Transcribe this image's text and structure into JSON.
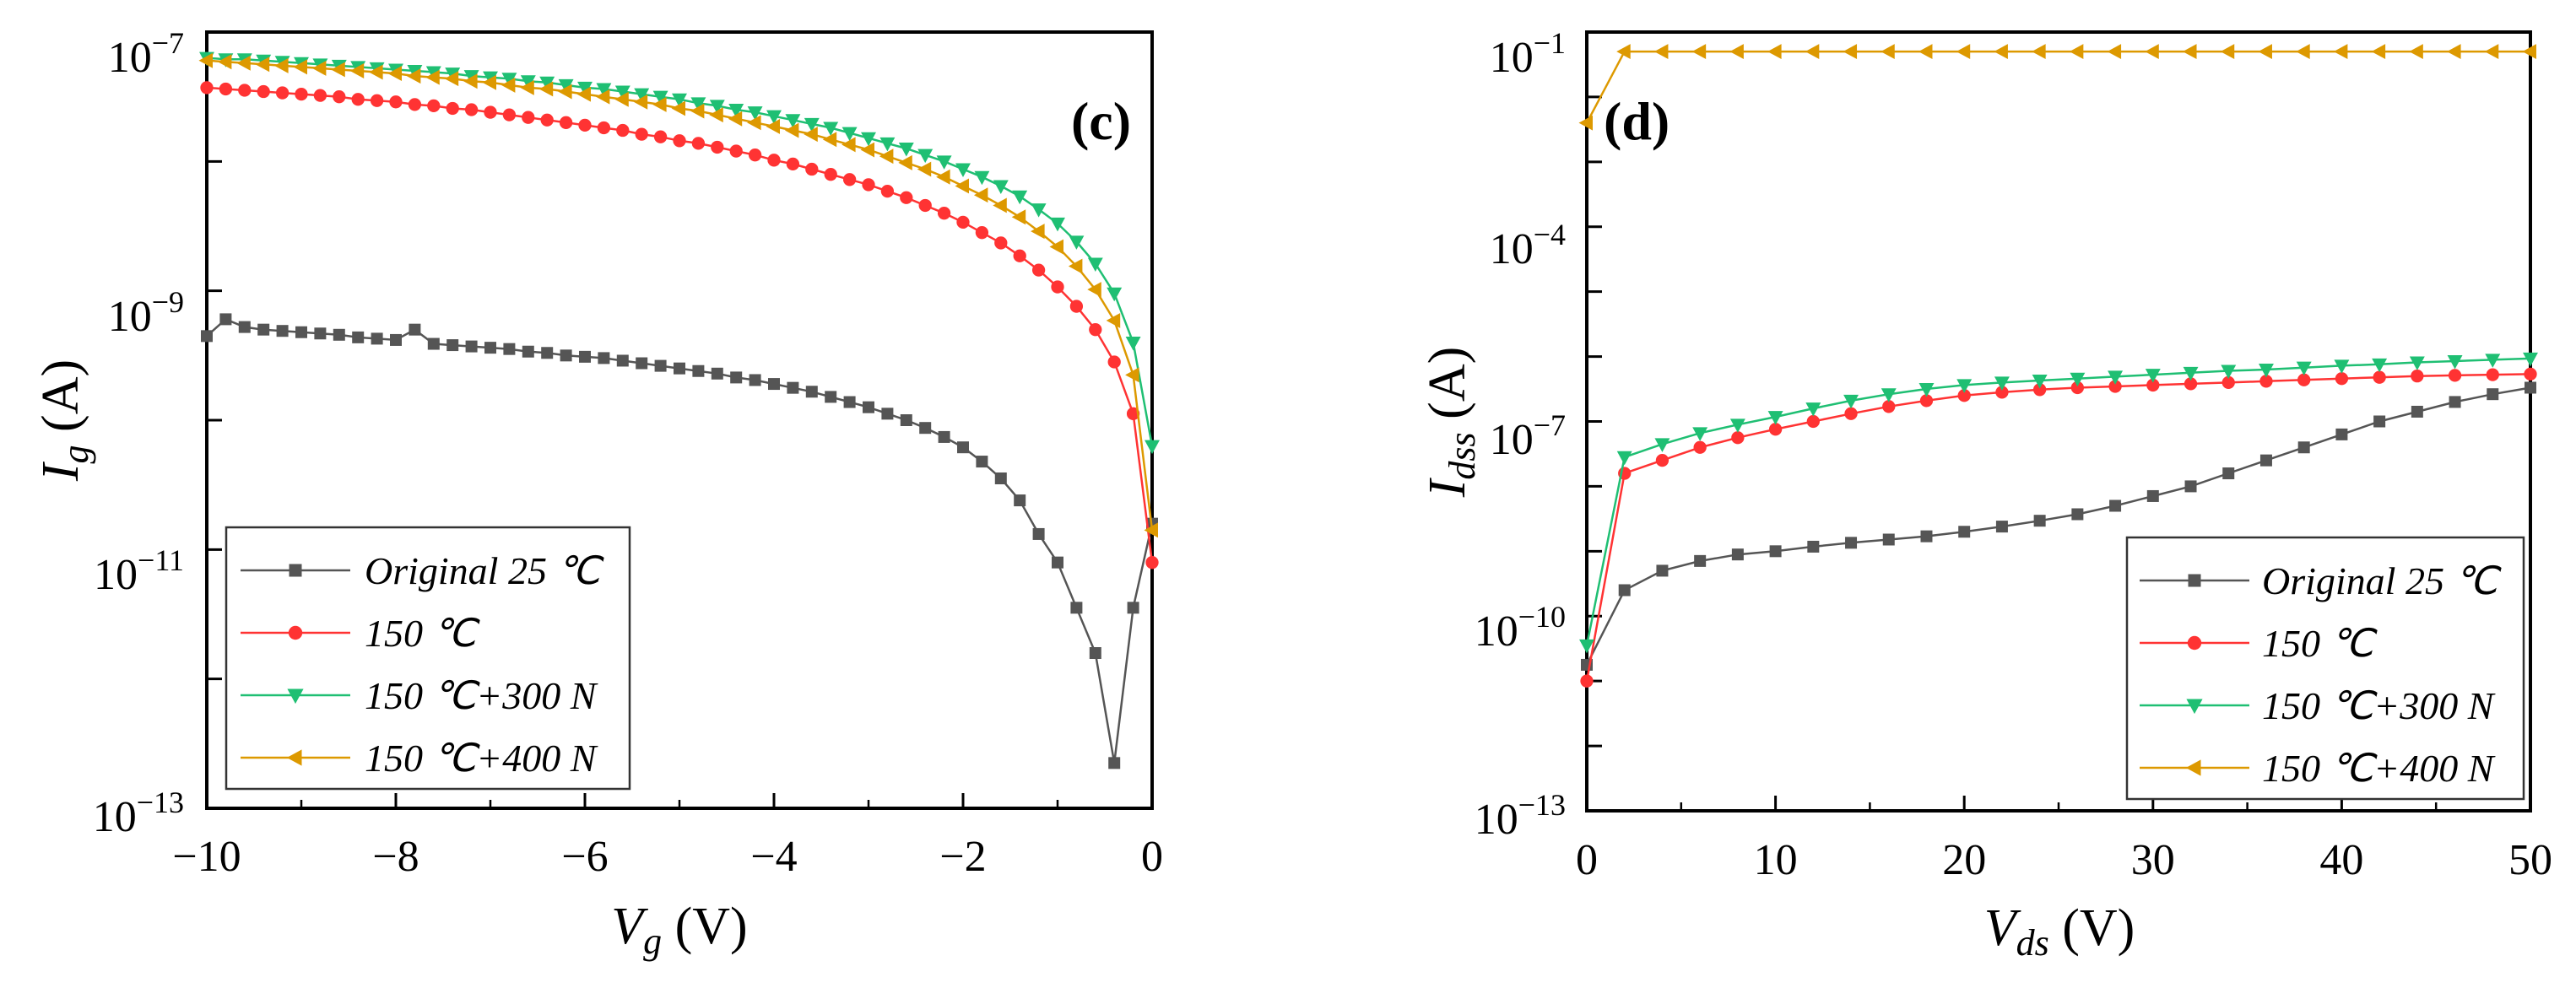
{
  "colors": {
    "original": "#555555",
    "t150": "#ff3333",
    "t150_300": "#1fbf73",
    "t150_400": "#dd9900",
    "axis": "#000000",
    "legend_border": "#333333"
  },
  "chart_data": [
    {
      "type": "line",
      "panel_label": "(c)",
      "xscale": "linear",
      "yscale": "log",
      "xlim": [
        -10,
        0
      ],
      "ylim_exp": [
        -13,
        -7
      ],
      "x_ticks": [
        "−10",
        "−8",
        "−6",
        "−4",
        "−2",
        "0"
      ],
      "y_ticks": [
        {
          "base": "10",
          "exp": "−7"
        },
        {
          "base": "10",
          "exp": "−9"
        },
        {
          "base": "10",
          "exp": "−11"
        },
        {
          "base": "10",
          "exp": "−13"
        }
      ],
      "xlabel": {
        "main": "V",
        "sub": "g",
        "unit": " (V)"
      },
      "ylabel": {
        "main": "I",
        "sub": "g",
        "unit": " (A)"
      },
      "legend_position": "bottom-left",
      "series": [
        {
          "name": "Original 25 ℃",
          "color_key": "original",
          "marker": "square",
          "x": [
            -10,
            -9.8,
            -9.6,
            -9.4,
            -9.2,
            -9.0,
            -8.8,
            -8.6,
            -8.4,
            -8.2,
            -8.0,
            -7.8,
            -7.6,
            -7.4,
            -7.2,
            -7.0,
            -6.8,
            -6.6,
            -6.4,
            -6.2,
            -6.0,
            -5.8,
            -5.6,
            -5.4,
            -5.2,
            -5.0,
            -4.8,
            -4.6,
            -4.4,
            -4.2,
            -4.0,
            -3.8,
            -3.6,
            -3.4,
            -3.2,
            -3.0,
            -2.8,
            -2.6,
            -2.4,
            -2.2,
            -2.0,
            -1.8,
            -1.6,
            -1.4,
            -1.2,
            -1.0,
            -0.8,
            -0.6,
            -0.4,
            -0.2,
            0
          ],
          "y_log10": [
            -9.35,
            -9.22,
            -9.28,
            -9.3,
            -9.31,
            -9.32,
            -9.33,
            -9.34,
            -9.36,
            -9.37,
            -9.38,
            -9.3,
            -9.41,
            -9.42,
            -9.43,
            -9.44,
            -9.45,
            -9.47,
            -9.48,
            -9.5,
            -9.51,
            -9.52,
            -9.54,
            -9.56,
            -9.58,
            -9.6,
            -9.62,
            -9.64,
            -9.67,
            -9.69,
            -9.72,
            -9.75,
            -9.78,
            -9.82,
            -9.86,
            -9.9,
            -9.95,
            -10.0,
            -10.06,
            -10.13,
            -10.21,
            -10.32,
            -10.45,
            -10.62,
            -10.88,
            -11.1,
            -11.45,
            -11.8,
            -12.65,
            -11.45,
            -10.8
          ]
        },
        {
          "name": "150 ℃",
          "color_key": "t150",
          "marker": "circle",
          "x": [
            -10,
            -9.8,
            -9.6,
            -9.4,
            -9.2,
            -9.0,
            -8.8,
            -8.6,
            -8.4,
            -8.2,
            -8.0,
            -7.8,
            -7.6,
            -7.4,
            -7.2,
            -7.0,
            -6.8,
            -6.6,
            -6.4,
            -6.2,
            -6.0,
            -5.8,
            -5.6,
            -5.4,
            -5.2,
            -5.0,
            -4.8,
            -4.6,
            -4.4,
            -4.2,
            -4.0,
            -3.8,
            -3.6,
            -3.4,
            -3.2,
            -3.0,
            -2.8,
            -2.6,
            -2.4,
            -2.2,
            -2.0,
            -1.8,
            -1.6,
            -1.4,
            -1.2,
            -1.0,
            -0.8,
            -0.6,
            -0.4,
            -0.2,
            0
          ],
          "y_log10": [
            -7.43,
            -7.44,
            -7.45,
            -7.46,
            -7.47,
            -7.48,
            -7.49,
            -7.5,
            -7.52,
            -7.53,
            -7.54,
            -7.56,
            -7.57,
            -7.59,
            -7.6,
            -7.62,
            -7.64,
            -7.66,
            -7.68,
            -7.7,
            -7.72,
            -7.74,
            -7.76,
            -7.79,
            -7.81,
            -7.84,
            -7.86,
            -7.89,
            -7.92,
            -7.95,
            -7.99,
            -8.02,
            -8.06,
            -8.1,
            -8.14,
            -8.18,
            -8.23,
            -8.28,
            -8.34,
            -8.4,
            -8.47,
            -8.55,
            -8.63,
            -8.73,
            -8.84,
            -8.97,
            -9.12,
            -9.3,
            -9.55,
            -9.95,
            -11.1
          ]
        },
        {
          "name": "150 ℃+300 N",
          "color_key": "t150_300",
          "marker": "triangle-down",
          "x": [
            -10,
            -9.8,
            -9.6,
            -9.4,
            -9.2,
            -9.0,
            -8.8,
            -8.6,
            -8.4,
            -8.2,
            -8.0,
            -7.8,
            -7.6,
            -7.4,
            -7.2,
            -7.0,
            -6.8,
            -6.6,
            -6.4,
            -6.2,
            -6.0,
            -5.8,
            -5.6,
            -5.4,
            -5.2,
            -5.0,
            -4.8,
            -4.6,
            -4.4,
            -4.2,
            -4.0,
            -3.8,
            -3.6,
            -3.4,
            -3.2,
            -3.0,
            -2.8,
            -2.6,
            -2.4,
            -2.2,
            -2.0,
            -1.8,
            -1.6,
            -1.4,
            -1.2,
            -1.0,
            -0.8,
            -0.6,
            -0.4,
            -0.2,
            0
          ],
          "y_log10": [
            -7.2,
            -7.21,
            -7.21,
            -7.22,
            -7.23,
            -7.24,
            -7.25,
            -7.26,
            -7.27,
            -7.28,
            -7.29,
            -7.3,
            -7.31,
            -7.32,
            -7.34,
            -7.35,
            -7.36,
            -7.38,
            -7.39,
            -7.41,
            -7.43,
            -7.44,
            -7.46,
            -7.48,
            -7.5,
            -7.52,
            -7.55,
            -7.57,
            -7.6,
            -7.62,
            -7.65,
            -7.68,
            -7.71,
            -7.74,
            -7.78,
            -7.82,
            -7.86,
            -7.9,
            -7.95,
            -8.0,
            -8.06,
            -8.12,
            -8.19,
            -8.27,
            -8.37,
            -8.48,
            -8.62,
            -8.79,
            -9.02,
            -9.4,
            -10.2
          ]
        },
        {
          "name": "150 ℃+400 N",
          "color_key": "t150_400",
          "marker": "triangle-left",
          "x": [
            -10,
            -9.8,
            -9.6,
            -9.4,
            -9.2,
            -9.0,
            -8.8,
            -8.6,
            -8.4,
            -8.2,
            -8.0,
            -7.8,
            -7.6,
            -7.4,
            -7.2,
            -7.0,
            -6.8,
            -6.6,
            -6.4,
            -6.2,
            -6.0,
            -5.8,
            -5.6,
            -5.4,
            -5.2,
            -5.0,
            -4.8,
            -4.6,
            -4.4,
            -4.2,
            -4.0,
            -3.8,
            -3.6,
            -3.4,
            -3.2,
            -3.0,
            -2.8,
            -2.6,
            -2.4,
            -2.2,
            -2.0,
            -1.8,
            -1.6,
            -1.4,
            -1.2,
            -1.0,
            -0.8,
            -0.6,
            -0.4,
            -0.2,
            0
          ],
          "y_log10": [
            -7.22,
            -7.23,
            -7.24,
            -7.25,
            -7.26,
            -7.27,
            -7.28,
            -7.29,
            -7.3,
            -7.31,
            -7.32,
            -7.34,
            -7.35,
            -7.36,
            -7.38,
            -7.39,
            -7.41,
            -7.43,
            -7.44,
            -7.46,
            -7.48,
            -7.5,
            -7.52,
            -7.54,
            -7.56,
            -7.59,
            -7.61,
            -7.64,
            -7.67,
            -7.7,
            -7.73,
            -7.76,
            -7.79,
            -7.83,
            -7.87,
            -7.91,
            -7.96,
            -8.01,
            -8.06,
            -8.12,
            -8.19,
            -8.26,
            -8.34,
            -8.43,
            -8.54,
            -8.66,
            -8.81,
            -8.99,
            -9.23,
            -9.65,
            -10.85
          ]
        }
      ]
    },
    {
      "type": "line",
      "panel_label": "(d)",
      "xscale": "linear",
      "yscale": "log",
      "xlim": [
        0,
        50
      ],
      "ylim_exp": [
        -13,
        -1
      ],
      "x_ticks": [
        "0",
        "10",
        "20",
        "30",
        "40",
        "50"
      ],
      "y_ticks": [
        {
          "base": "10",
          "exp": "−1"
        },
        {
          "base": "10",
          "exp": "−4"
        },
        {
          "base": "10",
          "exp": "−7"
        },
        {
          "base": "10",
          "exp": "−10"
        },
        {
          "base": "10",
          "exp": "−13"
        }
      ],
      "xlabel": {
        "main": "V",
        "sub": "ds",
        "unit": " (V)"
      },
      "ylabel": {
        "main": "I",
        "sub": "dss",
        "unit": " (A)"
      },
      "legend_position": "bottom-right",
      "series": [
        {
          "name": "Original 25 ℃",
          "color_key": "original",
          "marker": "square",
          "x": [
            0,
            2,
            4,
            6,
            8,
            10,
            12,
            14,
            16,
            18,
            20,
            22,
            24,
            26,
            28,
            30,
            32,
            34,
            36,
            38,
            40,
            42,
            44,
            46,
            48,
            50
          ],
          "y_log10": [
            -10.75,
            -9.6,
            -9.3,
            -9.15,
            -9.05,
            -9.0,
            -8.93,
            -8.87,
            -8.82,
            -8.77,
            -8.7,
            -8.62,
            -8.53,
            -8.43,
            -8.3,
            -8.15,
            -8.0,
            -7.8,
            -7.6,
            -7.4,
            -7.2,
            -7.0,
            -6.85,
            -6.7,
            -6.58,
            -6.48
          ]
        },
        {
          "name": "150 ℃",
          "color_key": "t150",
          "marker": "circle",
          "x": [
            0,
            2,
            4,
            6,
            8,
            10,
            12,
            14,
            16,
            18,
            20,
            22,
            24,
            26,
            28,
            30,
            32,
            34,
            36,
            38,
            40,
            42,
            44,
            46,
            48,
            50
          ],
          "y_log10": [
            -11.0,
            -7.8,
            -7.6,
            -7.4,
            -7.25,
            -7.12,
            -7.0,
            -6.88,
            -6.77,
            -6.68,
            -6.6,
            -6.55,
            -6.51,
            -6.48,
            -6.46,
            -6.44,
            -6.42,
            -6.4,
            -6.38,
            -6.36,
            -6.34,
            -6.32,
            -6.3,
            -6.29,
            -6.28,
            -6.27
          ]
        },
        {
          "name": "150 ℃+300 N",
          "color_key": "t150_300",
          "marker": "triangle-down",
          "x": [
            0,
            2,
            4,
            6,
            8,
            10,
            12,
            14,
            16,
            18,
            20,
            22,
            24,
            26,
            28,
            30,
            32,
            34,
            36,
            38,
            40,
            42,
            44,
            46,
            48,
            50
          ],
          "y_log10": [
            -10.45,
            -7.55,
            -7.35,
            -7.18,
            -7.05,
            -6.93,
            -6.8,
            -6.68,
            -6.58,
            -6.5,
            -6.44,
            -6.4,
            -6.37,
            -6.34,
            -6.31,
            -6.28,
            -6.25,
            -6.22,
            -6.2,
            -6.17,
            -6.14,
            -6.12,
            -6.09,
            -6.07,
            -6.05,
            -6.03
          ]
        },
        {
          "name": "150 ℃+400 N",
          "color_key": "t150_400",
          "marker": "triangle-left",
          "x": [
            0,
            2,
            4,
            6,
            8,
            10,
            12,
            14,
            16,
            18,
            20,
            22,
            24,
            26,
            28,
            30,
            32,
            34,
            36,
            38,
            40,
            42,
            44,
            46,
            48,
            50
          ],
          "y_log10": [
            -2.4,
            -1.3,
            -1.3,
            -1.3,
            -1.3,
            -1.3,
            -1.3,
            -1.3,
            -1.3,
            -1.3,
            -1.3,
            -1.3,
            -1.3,
            -1.3,
            -1.3,
            -1.3,
            -1.3,
            -1.3,
            -1.3,
            -1.3,
            -1.3,
            -1.3,
            -1.3,
            -1.3,
            -1.3,
            -1.3
          ]
        }
      ]
    }
  ]
}
